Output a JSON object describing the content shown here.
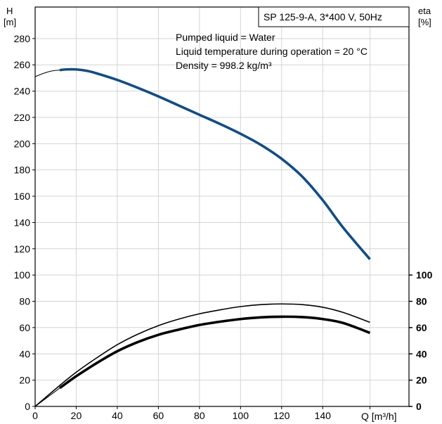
{
  "chart_data": {
    "type": "line",
    "title": "SP 125-9-A, 3*400 V, 50Hz",
    "annotations": [
      "Pumped liquid = Water",
      "Liquid temperature during operation = 20 °C",
      "Density = 998.2 kg/m³"
    ],
    "y_left_label": [
      "H",
      "[m]"
    ],
    "y_right_label": [
      "eta",
      "[%]"
    ],
    "x_label": "Q [m³/h]",
    "xlim": [
      0,
      182
    ],
    "ylim": [
      0,
      304
    ],
    "x_ticks": [
      "0",
      "20",
      "40",
      "60",
      "80",
      "100",
      "120",
      "140"
    ],
    "y_left_ticks": [
      "0",
      "20",
      "40",
      "60",
      "80",
      "100",
      "120",
      "140",
      "160",
      "180",
      "200",
      "220",
      "240",
      "260",
      "280"
    ],
    "y_right_ticks": [
      "0",
      "20",
      "40",
      "60",
      "80",
      "100"
    ],
    "grid": true,
    "series": [
      {
        "color": "#0f4d8a",
        "style": "thick",
        "x": [
          12,
          15,
          20,
          25,
          30,
          40,
          50,
          60,
          70,
          80,
          90,
          100,
          110,
          120,
          130,
          140,
          150,
          163
        ],
        "y": [
          256,
          256.5,
          256.5,
          255.5,
          253.5,
          248.5,
          242.5,
          236,
          229,
          222,
          215,
          207.5,
          199,
          188.5,
          175,
          157,
          136,
          112
        ]
      },
      {
        "color": "#000000",
        "style": "thin-extension",
        "x": [
          0,
          4,
          8,
          12
        ],
        "y": [
          251,
          253.5,
          255.3,
          256
        ]
      },
      {
        "color": "#000000",
        "style": "thin",
        "x": [
          0,
          12,
          20,
          30,
          40,
          50,
          60,
          70,
          80,
          90,
          100,
          110,
          120,
          130,
          140,
          150,
          163
        ],
        "y": [
          0,
          16,
          26,
          37,
          47,
          55,
          61.5,
          66.5,
          70.5,
          73.5,
          76,
          77.5,
          78,
          77.5,
          75.5,
          71.5,
          64
        ]
      },
      {
        "color": "#000000",
        "style": "thick",
        "x": [
          12,
          20,
          30,
          40,
          50,
          60,
          70,
          80,
          90,
          100,
          110,
          120,
          130,
          140,
          150,
          163
        ],
        "y": [
          14,
          23,
          33,
          42,
          49,
          54.5,
          58.5,
          62,
          64.5,
          66.5,
          67.8,
          68.3,
          68,
          66.5,
          63.5,
          56
        ]
      },
      {
        "color": "#000000",
        "style": "thin-extension",
        "x": [
          0,
          6,
          12
        ],
        "y": [
          0,
          7,
          14
        ]
      }
    ]
  }
}
